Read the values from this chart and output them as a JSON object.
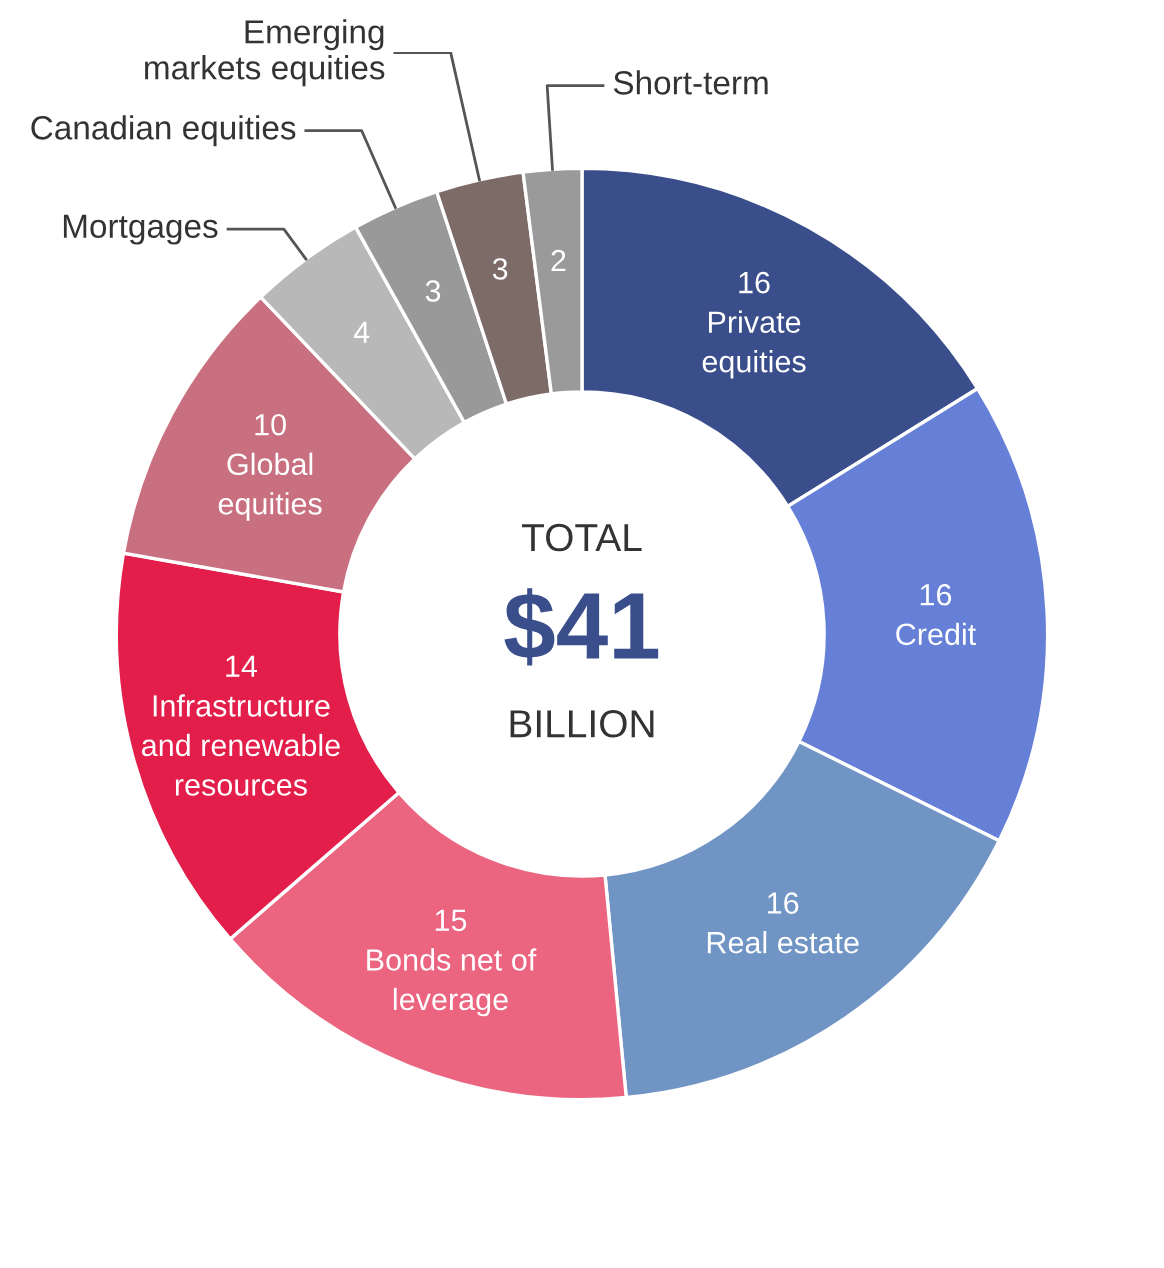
{
  "chart_data": {
    "type": "donut",
    "categories": [
      "Private equities",
      "Credit",
      "Real estate",
      "Bonds net of leverage",
      "Infrastructure and renewable resources",
      "Global equities",
      "Mortgages",
      "Canadian equities",
      "Emerging markets equities",
      "Short-term"
    ],
    "values": [
      16,
      16,
      16,
      15,
      14,
      10,
      4,
      3,
      3,
      2
    ],
    "colors": [
      "#3a4e8c",
      "#6680d8",
      "#7094c4",
      "#ec6580",
      "#e31e4a",
      "#c97080",
      "#b8b8b8",
      "#999999",
      "#7d6b68",
      "#9a9a9a"
    ],
    "data_labels": true,
    "annotations": [
      "TOTAL",
      "$41",
      "BILLION"
    ]
  }
}
